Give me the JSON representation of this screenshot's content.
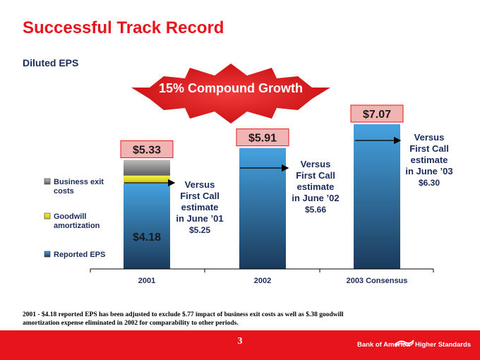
{
  "page": {
    "title": "Successful Track Record",
    "subtitle": "Diluted EPS",
    "footnote": "2001 - $4.18 reported EPS has been adjusted to exclude $.77 impact of business exit costs as well as $.38 goodwill amortization expense eliminated in 2002 for comparability to other periods.",
    "page_number": "3",
    "brand": "Bank of America",
    "tagline": "Higher Standards"
  },
  "colors": {
    "accent": "#e8141c",
    "reported_top": "#45a2df",
    "reported_bottom": "#1b3a5a",
    "goodwill": "#e8e400",
    "business_exit": "#8a8a8a",
    "starburst": "#e8141c",
    "label_box": "#f2b3b3"
  },
  "chart_data": {
    "type": "bar",
    "stacked": true,
    "categories": [
      "2001",
      "2002",
      "2003 Consensus"
    ],
    "series": [
      {
        "name": "Reported EPS",
        "values": [
          4.18,
          5.91,
          7.07
        ]
      },
      {
        "name": "Goodwill amortization",
        "values": [
          0.38,
          0,
          0
        ]
      },
      {
        "name": "Business exit costs",
        "values": [
          0.77,
          0,
          0
        ]
      }
    ],
    "totals": [
      "$5.33",
      "$5.91",
      "$7.07"
    ],
    "inner_label": "$4.18",
    "legend": [
      "Business exit costs",
      "Goodwill amortization",
      "Reported EPS"
    ],
    "legend_position": "left",
    "callout": "15% Compound Growth",
    "estimates": [
      {
        "lines": [
          "Versus",
          "First Call",
          "estimate",
          "in June ’01",
          "$5.25"
        ],
        "value": 5.25
      },
      {
        "lines": [
          "Versus",
          "First Call",
          "estimate",
          "in June ’02",
          "$5.66"
        ],
        "value": 5.66
      },
      {
        "lines": [
          "Versus",
          "First Call",
          "estimate",
          "in June ’03",
          "$6.30"
        ],
        "value": 6.3
      }
    ],
    "ylim": [
      0,
      7.6
    ]
  }
}
